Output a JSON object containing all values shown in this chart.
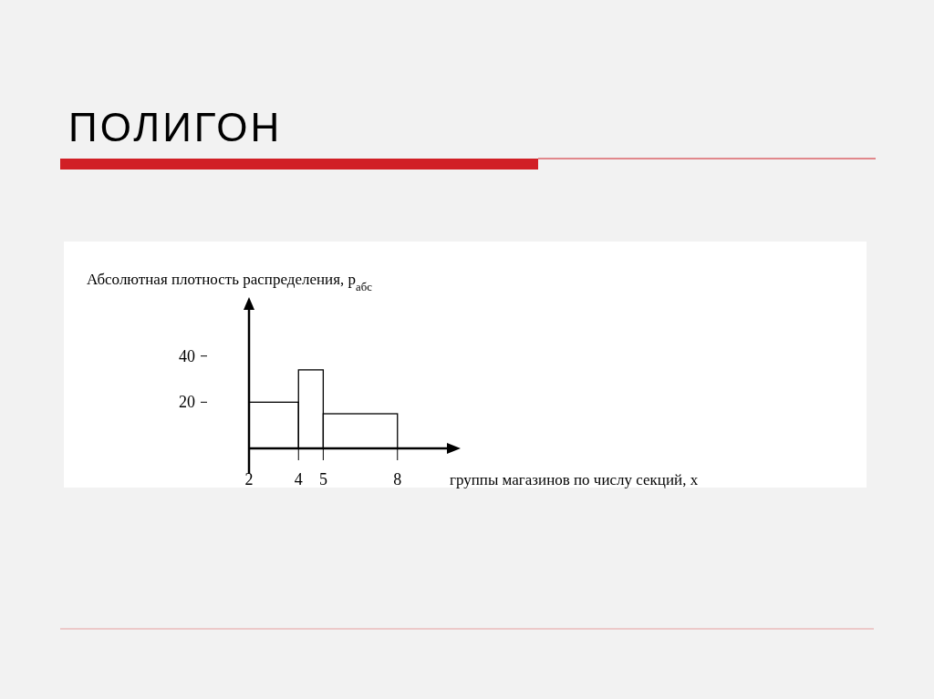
{
  "chart_data": {
    "type": "histogram",
    "title": "ПОЛИГОН",
    "ylabel": "Абсолютная плотность распределения, p$_{абс}$",
    "xlabel": "группы магазинов по числу секций, x",
    "bins": [
      2,
      4,
      5,
      8
    ],
    "values": [
      20,
      34,
      15
    ],
    "color": "#000000",
    "xlim": [
      2,
      10
    ],
    "xticks": [
      2,
      4,
      5,
      8
    ],
    "ylim": [
      0,
      60
    ],
    "yticks": [
      20,
      40
    ]
  }
}
